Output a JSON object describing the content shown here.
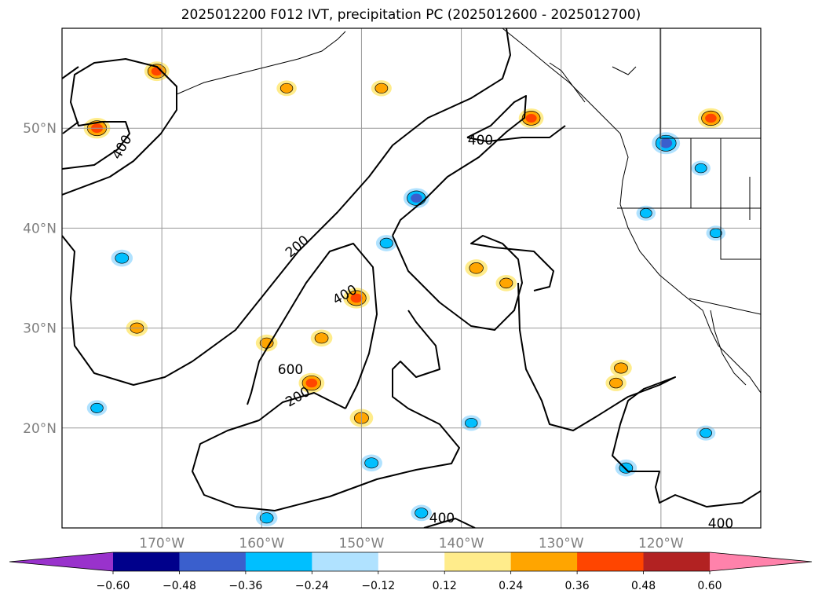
{
  "title": "2025012200 F012 IVT, precipitation PC (2025012600 - 2025012700)",
  "chart_data": {
    "type": "heatmap",
    "title": "2025012200 F012 IVT, precipitation PC (2025012600 - 2025012700)",
    "lon_range": [
      -180,
      -110
    ],
    "lat_range": [
      10,
      60
    ],
    "grid": true,
    "lat_ticks": [
      "20°N",
      "30°N",
      "40°N",
      "50°N"
    ],
    "lon_ticks": [
      "170°W",
      "160°W",
      "150°W",
      "140°W",
      "130°W",
      "120°W"
    ],
    "lat_tick_values": [
      20,
      30,
      40,
      50
    ],
    "lon_tick_values": [
      -170,
      -160,
      -150,
      -140,
      -130,
      -120
    ],
    "colorbar": {
      "orientation": "horizontal",
      "extend": "both",
      "levels": [
        -0.6,
        -0.48,
        -0.36,
        -0.24,
        -0.12,
        0.12,
        0.24,
        0.36,
        0.48,
        0.6
      ],
      "tick_labels": [
        "−0.60",
        "−0.48",
        "−0.36",
        "−0.24",
        "−0.12",
        "0.12",
        "0.24",
        "0.36",
        "0.48",
        "0.60"
      ],
      "colors": [
        "#9932cc",
        "#00008b",
        "#3a5fcd",
        "#00bfff",
        "#b0e2ff",
        "#ffffff",
        "#ffec8b",
        "#ffa500",
        "#ff4500",
        "#b22222",
        "#ff82ab"
      ]
    },
    "ivt_contour_labels": [
      "200",
      "200",
      "400",
      "400",
      "400",
      "400",
      "400",
      "600"
    ],
    "ivt_contour_levels": [
      200,
      400,
      600
    ],
    "precip_features": [
      {
        "lon": -176.5,
        "lat": 50.0,
        "value": 0.42
      },
      {
        "lon": -170.5,
        "lat": 55.7,
        "value": 0.38
      },
      {
        "lon": -157.5,
        "lat": 54.0,
        "value": 0.26
      },
      {
        "lon": -148.0,
        "lat": 54.0,
        "value": 0.27
      },
      {
        "lon": -133.0,
        "lat": 51.0,
        "value": 0.38
      },
      {
        "lon": -115.0,
        "lat": 51.0,
        "value": 0.4
      },
      {
        "lon": -119.5,
        "lat": 48.5,
        "value": -0.46
      },
      {
        "lon": -116.0,
        "lat": 46.0,
        "value": -0.24
      },
      {
        "lon": -174.0,
        "lat": 37.0,
        "value": -0.3
      },
      {
        "lon": -172.5,
        "lat": 30.0,
        "value": 0.3
      },
      {
        "lon": -176.5,
        "lat": 22.0,
        "value": -0.26
      },
      {
        "lon": -150.5,
        "lat": 33.0,
        "value": 0.42
      },
      {
        "lon": -154.0,
        "lat": 29.0,
        "value": 0.3
      },
      {
        "lon": -155.0,
        "lat": 24.5,
        "value": 0.4
      },
      {
        "lon": -150.0,
        "lat": 21.0,
        "value": 0.34
      },
      {
        "lon": -149.0,
        "lat": 16.5,
        "value": -0.3
      },
      {
        "lon": -144.5,
        "lat": 43.0,
        "value": -0.4
      },
      {
        "lon": -147.5,
        "lat": 38.5,
        "value": -0.28
      },
      {
        "lon": -138.5,
        "lat": 36.0,
        "value": 0.32
      },
      {
        "lon": -135.5,
        "lat": 34.5,
        "value": 0.28
      },
      {
        "lon": -123.5,
        "lat": 16.0,
        "value": -0.3
      },
      {
        "lon": -121.5,
        "lat": 41.5,
        "value": -0.24
      },
      {
        "lon": -124.5,
        "lat": 24.5,
        "value": 0.28
      },
      {
        "lon": -124.0,
        "lat": 26.0,
        "value": 0.3
      },
      {
        "lon": -144.0,
        "lat": 11.5,
        "value": -0.28
      },
      {
        "lon": -159.5,
        "lat": 11.0,
        "value": -0.3
      },
      {
        "lon": -114.5,
        "lat": 39.5,
        "value": -0.24
      },
      {
        "lon": -159.5,
        "lat": 28.5,
        "value": 0.3
      },
      {
        "lon": -139.0,
        "lat": 20.5,
        "value": -0.26
      },
      {
        "lon": -115.5,
        "lat": 19.5,
        "value": -0.24
      }
    ]
  }
}
